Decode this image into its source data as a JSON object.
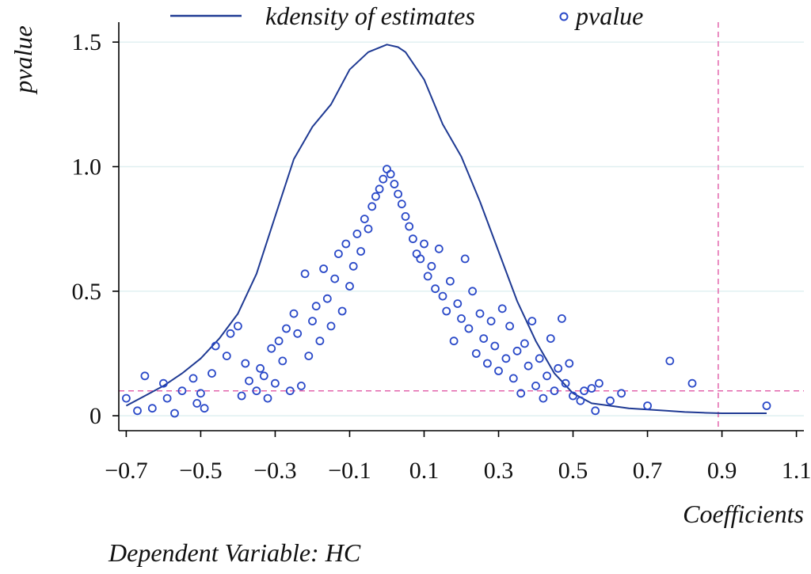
{
  "chart_data": {
    "type": "scatter",
    "xlabel": "Coefficients",
    "ylabel": "pvalue",
    "note": "Dependent Variable: HC",
    "xlim": [
      -0.72,
      1.12
    ],
    "ylim": [
      -0.06,
      1.58
    ],
    "x_ticks": [
      -0.7,
      -0.5,
      -0.3,
      -0.1,
      0.1,
      0.3,
      0.5,
      0.7,
      0.9,
      1.1
    ],
    "x_tick_labels": [
      "−0.7",
      "−0.5",
      "−0.3",
      "−0.1",
      "0.1",
      "0.3",
      "0.5",
      "0.7",
      "0.9",
      "1.1"
    ],
    "y_ticks": [
      0,
      0.5,
      1.0,
      1.5
    ],
    "y_tick_labels": [
      "0",
      "0.5",
      "1.0",
      "1.5"
    ],
    "grid": "horizontal",
    "legend": {
      "placement": "top",
      "entries": [
        {
          "label": "kdensity of estimates",
          "marker": "line"
        },
        {
          "label": "pvalue",
          "marker": "circle"
        }
      ]
    },
    "colors": {
      "series": "#1f3a93",
      "markers": "#2a49c8",
      "reference": "#e05aa6",
      "grid": "#dfeff0"
    },
    "reference_lines": [
      {
        "orientation": "horizontal",
        "value": 0.1,
        "style": "dashed"
      },
      {
        "orientation": "vertical",
        "value": 0.89,
        "style": "dashed"
      }
    ],
    "series": [
      {
        "name": "kdensity of estimates",
        "kind": "line",
        "x": [
          -0.7,
          -0.65,
          -0.6,
          -0.55,
          -0.5,
          -0.45,
          -0.4,
          -0.35,
          -0.3,
          -0.25,
          -0.2,
          -0.15,
          -0.1,
          -0.05,
          0.0,
          0.03,
          0.05,
          0.1,
          0.15,
          0.2,
          0.25,
          0.3,
          0.35,
          0.4,
          0.45,
          0.5,
          0.55,
          0.6,
          0.65,
          0.7,
          0.75,
          0.8,
          0.85,
          0.9,
          0.95,
          1.02
        ],
        "y": [
          0.04,
          0.08,
          0.12,
          0.17,
          0.23,
          0.31,
          0.41,
          0.57,
          0.8,
          1.03,
          1.16,
          1.25,
          1.39,
          1.46,
          1.49,
          1.48,
          1.46,
          1.35,
          1.17,
          1.04,
          0.86,
          0.66,
          0.46,
          0.3,
          0.17,
          0.09,
          0.05,
          0.04,
          0.03,
          0.025,
          0.02,
          0.015,
          0.012,
          0.01,
          0.01,
          0.01
        ]
      },
      {
        "name": "pvalue",
        "kind": "scatter",
        "points": [
          [
            -0.7,
            0.07
          ],
          [
            -0.67,
            0.02
          ],
          [
            -0.65,
            0.16
          ],
          [
            -0.63,
            0.03
          ],
          [
            -0.6,
            0.13
          ],
          [
            -0.59,
            0.07
          ],
          [
            -0.57,
            0.01
          ],
          [
            -0.55,
            0.1
          ],
          [
            -0.52,
            0.15
          ],
          [
            -0.51,
            0.05
          ],
          [
            -0.5,
            0.09
          ],
          [
            -0.49,
            0.03
          ],
          [
            -0.47,
            0.17
          ],
          [
            -0.46,
            0.28
          ],
          [
            -0.43,
            0.24
          ],
          [
            -0.42,
            0.33
          ],
          [
            -0.4,
            0.36
          ],
          [
            -0.39,
            0.08
          ],
          [
            -0.38,
            0.21
          ],
          [
            -0.37,
            0.14
          ],
          [
            -0.35,
            0.1
          ],
          [
            -0.34,
            0.19
          ],
          [
            -0.33,
            0.16
          ],
          [
            -0.32,
            0.07
          ],
          [
            -0.31,
            0.27
          ],
          [
            -0.3,
            0.13
          ],
          [
            -0.29,
            0.3
          ],
          [
            -0.28,
            0.22
          ],
          [
            -0.27,
            0.35
          ],
          [
            -0.26,
            0.1
          ],
          [
            -0.25,
            0.41
          ],
          [
            -0.24,
            0.33
          ],
          [
            -0.23,
            0.12
          ],
          [
            -0.22,
            0.57
          ],
          [
            -0.21,
            0.24
          ],
          [
            -0.2,
            0.38
          ],
          [
            -0.19,
            0.44
          ],
          [
            -0.18,
            0.3
          ],
          [
            -0.17,
            0.59
          ],
          [
            -0.16,
            0.47
          ],
          [
            -0.15,
            0.36
          ],
          [
            -0.14,
            0.55
          ],
          [
            -0.13,
            0.65
          ],
          [
            -0.12,
            0.42
          ],
          [
            -0.11,
            0.69
          ],
          [
            -0.1,
            0.52
          ],
          [
            -0.09,
            0.6
          ],
          [
            -0.08,
            0.73
          ],
          [
            -0.07,
            0.66
          ],
          [
            -0.06,
            0.79
          ],
          [
            -0.05,
            0.75
          ],
          [
            -0.04,
            0.84
          ],
          [
            -0.03,
            0.88
          ],
          [
            -0.02,
            0.91
          ],
          [
            -0.01,
            0.95
          ],
          [
            0.0,
            0.99
          ],
          [
            0.01,
            0.97
          ],
          [
            0.02,
            0.93
          ],
          [
            0.03,
            0.89
          ],
          [
            0.04,
            0.85
          ],
          [
            0.05,
            0.8
          ],
          [
            0.06,
            0.76
          ],
          [
            0.07,
            0.71
          ],
          [
            0.08,
            0.65
          ],
          [
            0.09,
            0.63
          ],
          [
            0.1,
            0.69
          ],
          [
            0.11,
            0.56
          ],
          [
            0.12,
            0.6
          ],
          [
            0.13,
            0.51
          ],
          [
            0.14,
            0.67
          ],
          [
            0.15,
            0.48
          ],
          [
            0.16,
            0.42
          ],
          [
            0.17,
            0.54
          ],
          [
            0.18,
            0.3
          ],
          [
            0.19,
            0.45
          ],
          [
            0.2,
            0.39
          ],
          [
            0.21,
            0.63
          ],
          [
            0.22,
            0.35
          ],
          [
            0.23,
            0.5
          ],
          [
            0.24,
            0.25
          ],
          [
            0.25,
            0.41
          ],
          [
            0.26,
            0.31
          ],
          [
            0.27,
            0.21
          ],
          [
            0.28,
            0.38
          ],
          [
            0.29,
            0.28
          ],
          [
            0.3,
            0.18
          ],
          [
            0.31,
            0.43
          ],
          [
            0.32,
            0.23
          ],
          [
            0.33,
            0.36
          ],
          [
            0.34,
            0.15
          ],
          [
            0.35,
            0.26
          ],
          [
            0.36,
            0.09
          ],
          [
            0.37,
            0.29
          ],
          [
            0.38,
            0.2
          ],
          [
            0.39,
            0.38
          ],
          [
            0.4,
            0.12
          ],
          [
            0.41,
            0.23
          ],
          [
            0.42,
            0.07
          ],
          [
            0.43,
            0.16
          ],
          [
            0.44,
            0.31
          ],
          [
            0.45,
            0.1
          ],
          [
            0.46,
            0.19
          ],
          [
            0.47,
            0.39
          ],
          [
            0.48,
            0.13
          ],
          [
            0.49,
            0.21
          ],
          [
            0.5,
            0.08
          ],
          [
            0.52,
            0.06
          ],
          [
            0.53,
            0.1
          ],
          [
            0.55,
            0.11
          ],
          [
            0.56,
            0.02
          ],
          [
            0.57,
            0.13
          ],
          [
            0.6,
            0.06
          ],
          [
            0.63,
            0.09
          ],
          [
            0.7,
            0.04
          ],
          [
            0.76,
            0.22
          ],
          [
            0.82,
            0.13
          ],
          [
            1.02,
            0.04
          ]
        ]
      }
    ]
  }
}
